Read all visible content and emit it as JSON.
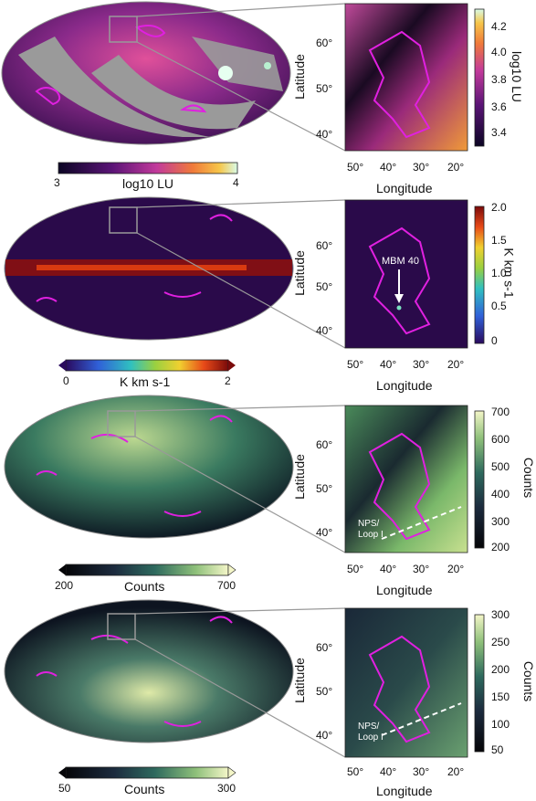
{
  "panels": [
    {
      "id": "a",
      "cbar_h_label": "log10 LU",
      "cbar_h_ticks": [
        "3",
        "4"
      ],
      "cbar_v_label": "log10 LU",
      "cbar_v_ticks": [
        "4.2",
        "4.0",
        "3.8",
        "3.6",
        "3.4"
      ],
      "lat_ticks": [
        "60°",
        "50°",
        "40°"
      ],
      "lon_ticks": [
        "50°",
        "40°",
        "30°",
        "20°"
      ],
      "xlabel": "Longitude",
      "ylabel": "Latitude"
    },
    {
      "id": "b",
      "cbar_h_label": "K km s-1",
      "cbar_h_ticks": [
        "0",
        "2"
      ],
      "cbar_v_label": "K km s-1",
      "cbar_v_ticks": [
        "2.0",
        "1.5",
        "1.0",
        "0.5",
        "0"
      ],
      "lat_ticks": [
        "60°",
        "50°",
        "40°"
      ],
      "lon_ticks": [
        "50°",
        "40°",
        "30°",
        "20°"
      ],
      "xlabel": "Longitude",
      "ylabel": "Latitude",
      "annotation": "MBM 40"
    },
    {
      "id": "c",
      "cbar_h_label": "Counts",
      "cbar_h_ticks": [
        "200",
        "700"
      ],
      "cbar_v_label": "Counts",
      "cbar_v_ticks": [
        "700",
        "600",
        "500",
        "400",
        "300",
        "200"
      ],
      "lat_ticks": [
        "60°",
        "50°",
        "40°"
      ],
      "lon_ticks": [
        "50°",
        "40°",
        "30°",
        "20°"
      ],
      "xlabel": "Longitude",
      "ylabel": "Latitude",
      "annotation_line1": "NPS/",
      "annotation_line2": "Loop I"
    },
    {
      "id": "d",
      "cbar_h_label": "Counts",
      "cbar_h_ticks": [
        "50",
        "300"
      ],
      "cbar_v_label": "Counts",
      "cbar_v_ticks": [
        "300",
        "250",
        "200",
        "150",
        "100",
        "50"
      ],
      "lat_ticks": [
        "60°",
        "50°",
        "40°"
      ],
      "lon_ticks": [
        "50°",
        "40°",
        "30°",
        "20°"
      ],
      "xlabel": "Longitude",
      "ylabel": "Latitude",
      "annotation_line1": "NPS/",
      "annotation_line2": "Loop I"
    }
  ]
}
